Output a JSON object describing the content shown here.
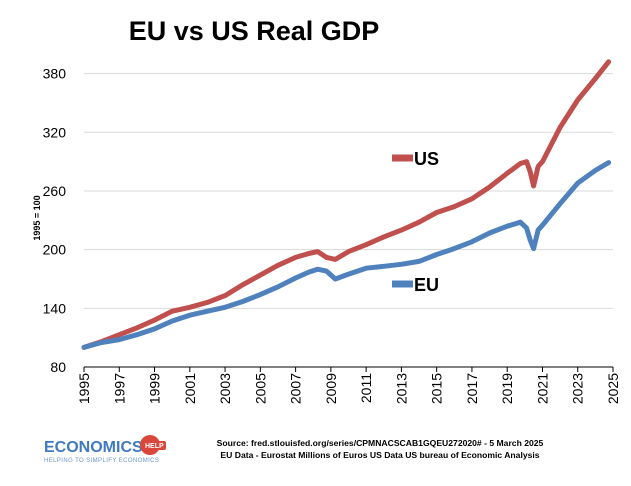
{
  "chart_data": {
    "type": "line",
    "title": "EU vs US Real GDP",
    "ylabel": "1995 = 100",
    "xlabel": "",
    "xlim": [
      1995,
      2025
    ],
    "ylim": [
      80,
      400
    ],
    "y_ticks": [
      80,
      140,
      200,
      260,
      320,
      380
    ],
    "x_ticks": [
      1995,
      1997,
      1999,
      2001,
      2003,
      2005,
      2007,
      2009,
      2011,
      2013,
      2015,
      2017,
      2019,
      2021,
      2023,
      2025
    ],
    "series": [
      {
        "name": "US",
        "color": "#c0504d",
        "x": [
          1995,
          1996,
          1997,
          1998,
          1999,
          2000,
          2001,
          2002,
          2003,
          2004,
          2005,
          2006,
          2007,
          2007.75,
          2008.25,
          2008.75,
          2009.25,
          2010,
          2011,
          2012,
          2013,
          2014,
          2015,
          2016,
          2017,
          2018,
          2019,
          2019.75,
          2020.1,
          2020.3,
          2020.5,
          2020.75,
          2021,
          2022,
          2023,
          2024,
          2024.75
        ],
        "values": [
          100,
          106,
          113,
          120,
          128,
          137,
          141,
          146,
          153,
          164,
          174,
          184,
          192,
          196,
          198,
          192,
          190,
          198,
          205,
          213,
          220,
          228,
          238,
          244,
          252,
          264,
          278,
          288,
          290,
          280,
          265,
          285,
          290,
          325,
          353,
          375,
          392
        ]
      },
      {
        "name": "EU",
        "color": "#4f81bd",
        "x": [
          1995,
          1996,
          1997,
          1998,
          1999,
          2000,
          2001,
          2002,
          2003,
          2004,
          2005,
          2006,
          2007,
          2007.75,
          2008.25,
          2008.75,
          2009.25,
          2010,
          2011,
          2012,
          2013,
          2014,
          2015,
          2016,
          2017,
          2018,
          2019,
          2019.75,
          2020.1,
          2020.3,
          2020.5,
          2020.75,
          2021,
          2022,
          2023,
          2024,
          2024.75
        ],
        "values": [
          100,
          105,
          108,
          113,
          119,
          127,
          133,
          137,
          141,
          147,
          154,
          162,
          171,
          177,
          180,
          178,
          170,
          175,
          181,
          183,
          185,
          188,
          195,
          201,
          208,
          217,
          224,
          228,
          222,
          210,
          201,
          220,
          225,
          247,
          268,
          281,
          289
        ]
      }
    ],
    "legend": [
      {
        "label": "US",
        "color": "#c0504d"
      },
      {
        "label": "EU",
        "color": "#4f81bd"
      }
    ],
    "source_line1": "Source: fred.stlouisfed.org/series/CPMNACSCAB1GQEU272020# - 5 March 2025",
    "source_line2": "EU Data - Eurostat Millions of Euros US Data US bureau of Economic Analysis"
  },
  "logo": {
    "name": "ECONOMICS",
    "badge": "HELP",
    "tagline": "HELPING TO SIMPLIFY ECONOMICS"
  }
}
